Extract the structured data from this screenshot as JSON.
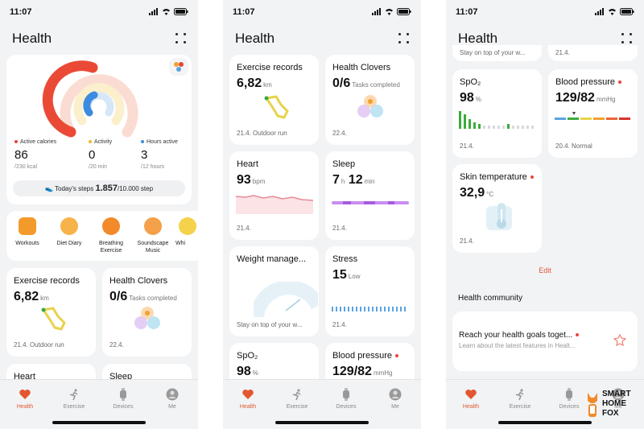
{
  "status": {
    "time": "11:07"
  },
  "app_title": "Health",
  "p1": {
    "rings": {
      "metrics": [
        {
          "label": "Active calories",
          "value": "86",
          "sub": "/230 kcal",
          "color": "#e8443a"
        },
        {
          "label": "Activity",
          "value": "0",
          "sub": "/20 min",
          "color": "#f2b632"
        },
        {
          "label": "Hours active",
          "value": "3",
          "sub": "/12 hours",
          "color": "#3c8be0"
        }
      ],
      "steps_prefix": "Today's steps",
      "steps_value": "1.857",
      "steps_goal": "/10.000 step"
    },
    "shortcuts": [
      "Workouts",
      "Diet Diary",
      "Breathing Exercise",
      "Soundscape Music",
      "Whi"
    ],
    "exercise": {
      "title": "Exercise records",
      "value": "6,82",
      "unit": "km",
      "foot": "21.4. Outdoor run"
    },
    "clovers": {
      "title": "Health Clovers",
      "value": "0/6",
      "unit": "Tasks completed",
      "foot": "22.4."
    },
    "heart_peek": "Heart",
    "sleep_peek": "Sleep"
  },
  "p2": {
    "exercise": {
      "title": "Exercise records",
      "value": "6,82",
      "unit": "km",
      "foot": "21.4. Outdoor run"
    },
    "clovers": {
      "title": "Health Clovers",
      "value": "0/6",
      "unit": "Tasks completed",
      "foot": "22.4."
    },
    "heart": {
      "title": "Heart",
      "value": "93",
      "unit": "bpm",
      "foot": "21.4."
    },
    "sleep": {
      "title": "Sleep",
      "h": "7",
      "hu": "h",
      "m": "12",
      "mu": "min",
      "foot": "21.4."
    },
    "weight": {
      "title": "Weight manage...",
      "foot": "Stay on top of your w..."
    },
    "stress": {
      "title": "Stress",
      "value": "15",
      "unit": "Low",
      "foot": "21.4."
    },
    "spo2": {
      "title": "SpO₂",
      "value": "98",
      "unit": "%"
    },
    "bp": {
      "title": "Blood pressure",
      "value": "129/82",
      "unit": "mmHg"
    }
  },
  "p3": {
    "peek_left": "Stay on top of your w...",
    "peek_right": "21.4.",
    "spo2": {
      "title": "SpO₂",
      "value": "98",
      "unit": "%",
      "foot": "21.4."
    },
    "bp": {
      "title": "Blood pressure",
      "value": "129/82",
      "unit": "mmHg",
      "foot": "20.4. Normal"
    },
    "skin": {
      "title": "Skin temperature",
      "value": "32,9",
      "unit": "°C",
      "foot": "21.4."
    },
    "edit": "Edit",
    "community_title": "Health community",
    "community_card": {
      "title": "Reach your health goals toget...",
      "sub": "Learn about the latest features in Healt..."
    }
  },
  "nav": [
    "Health",
    "Exercise",
    "Devices",
    "Me"
  ],
  "watermark": "SMART HOME FOX",
  "colors": {
    "accent": "#e2572f",
    "heart": "#e88a94",
    "sleep": "#a85ae0",
    "stress": "#5aa3e0",
    "spo2": "#3daa3d"
  }
}
